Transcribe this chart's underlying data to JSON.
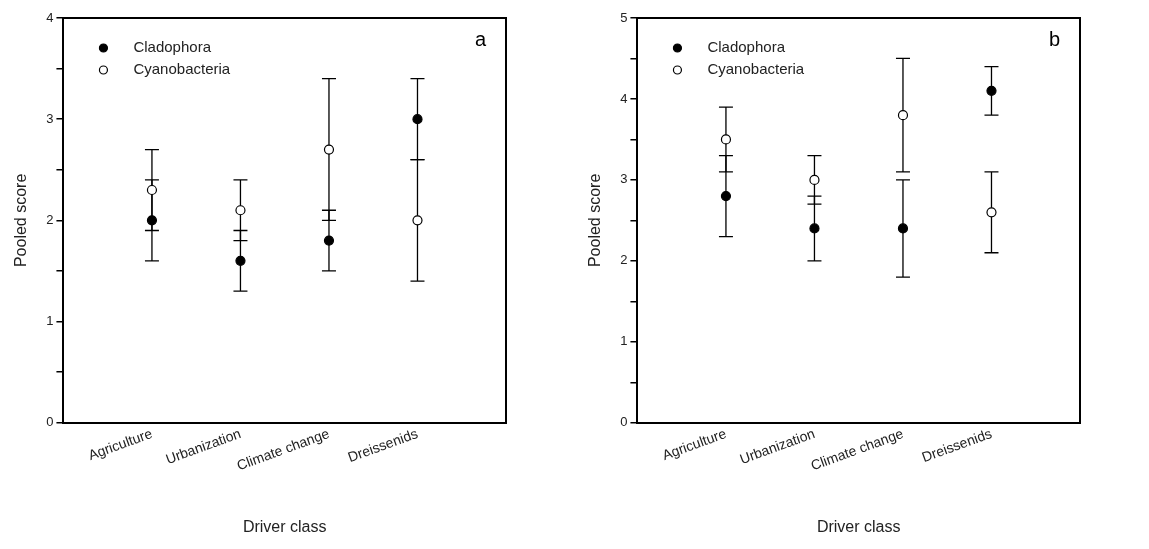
{
  "chart_data": [
    {
      "type": "scatter",
      "title": "a",
      "xlabel": "Driver class",
      "ylabel": "Pooled score",
      "categories": [
        "Agriculture",
        "Urbanization",
        "Climate change",
        "Dreissenids"
      ],
      "series": [
        {
          "name": "Cladophora",
          "color": "#000000",
          "values": [
            2.0,
            1.6,
            1.8,
            3.0
          ],
          "errors": [
            0.4,
            0.3,
            0.3,
            0.4
          ]
        },
        {
          "name": "Cyanobacteria",
          "color": "#ffffff",
          "values": [
            2.3,
            2.1,
            2.7,
            2.0
          ],
          "errors": [
            0.4,
            0.3,
            0.7,
            0.6
          ]
        }
      ],
      "ylim": [
        0,
        4
      ],
      "yticks": [
        0,
        {
          "value": 0.5,
          "label": null
        },
        1,
        {
          "value": 1.5,
          "label": null
        },
        2,
        {
          "value": 2.5,
          "label": null
        },
        3,
        {
          "value": 3.5,
          "label": null
        },
        4
      ],
      "legend": "top left",
      "marker": "circle"
    },
    {
      "type": "scatter",
      "title": "b",
      "xlabel": "Driver class",
      "ylabel": "Pooled score",
      "categories": [
        "Agriculture",
        "Urbanization",
        "Climate change",
        "Dreissenids"
      ],
      "series": [
        {
          "name": "Cladophora",
          "color": "#000000",
          "values": [
            2.8,
            2.4,
            2.4,
            4.1
          ],
          "errors": [
            0.5,
            0.4,
            0.6,
            0.3
          ]
        },
        {
          "name": "Cyanobacteria",
          "color": "#ffffff",
          "values": [
            3.5,
            3.0,
            3.8,
            2.6
          ],
          "errors": [
            0.4,
            0.3,
            0.7,
            0.5
          ]
        }
      ],
      "ylim": [
        0,
        5
      ],
      "yticks": [
        0,
        {
          "value": 0.5,
          "label": null
        },
        1,
        {
          "value": 1.5,
          "label": null
        },
        2,
        {
          "value": 2.5,
          "label": null
        },
        3,
        {
          "value": 3.5,
          "label": null
        },
        4,
        {
          "value": 4.5,
          "label": null
        },
        5
      ],
      "legend": "top left",
      "marker": "circle"
    }
  ]
}
